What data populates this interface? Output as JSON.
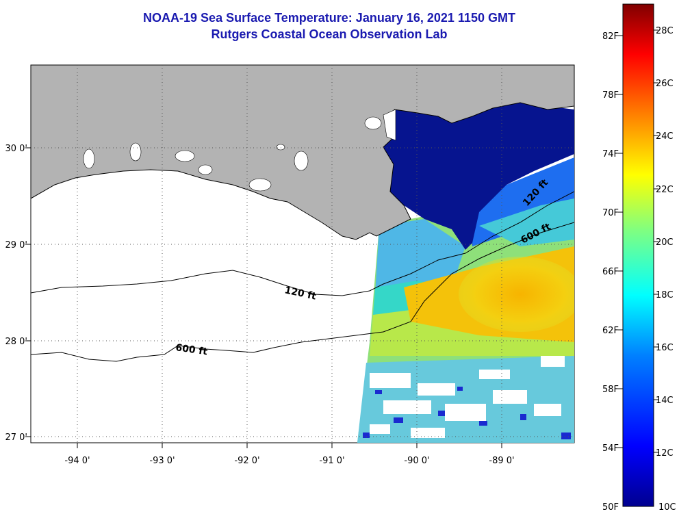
{
  "header": {
    "title": "NOAA-19 Sea Surface Temperature:  January 16, 2021 1150 GMT",
    "subtitle": "Rutgers Coastal Ocean Observation Lab"
  },
  "map": {
    "x_ticks": [
      "-94 0'",
      "-93 0'",
      "-92 0'",
      "-91 0'",
      "-90 0'",
      "-89 0'"
    ],
    "y_ticks": [
      "30 0'",
      "29 0'",
      "28 0'",
      "27 0'"
    ],
    "contours": [
      {
        "label": "120 ft"
      },
      {
        "label": "600 ft"
      },
      {
        "label": "120 ft"
      },
      {
        "label": "600 ft"
      }
    ],
    "colors": {
      "land": "#b3b3b3",
      "ocean_nodata": "#ffffff"
    }
  },
  "colorbar": {
    "fahrenheit": [
      "82F",
      "78F",
      "74F",
      "70F",
      "66F",
      "62F",
      "58F",
      "54F",
      "50F"
    ],
    "celsius": [
      "28C",
      "26C",
      "24C",
      "22C",
      "20C",
      "18C",
      "16C",
      "14C",
      "12C",
      "10C"
    ],
    "range_c": [
      10,
      29
    ],
    "colors": [
      "#00008f",
      "#0000ff",
      "#0080ff",
      "#00ffff",
      "#80ff80",
      "#ffff00",
      "#ff8000",
      "#ff0000",
      "#800000"
    ]
  }
}
